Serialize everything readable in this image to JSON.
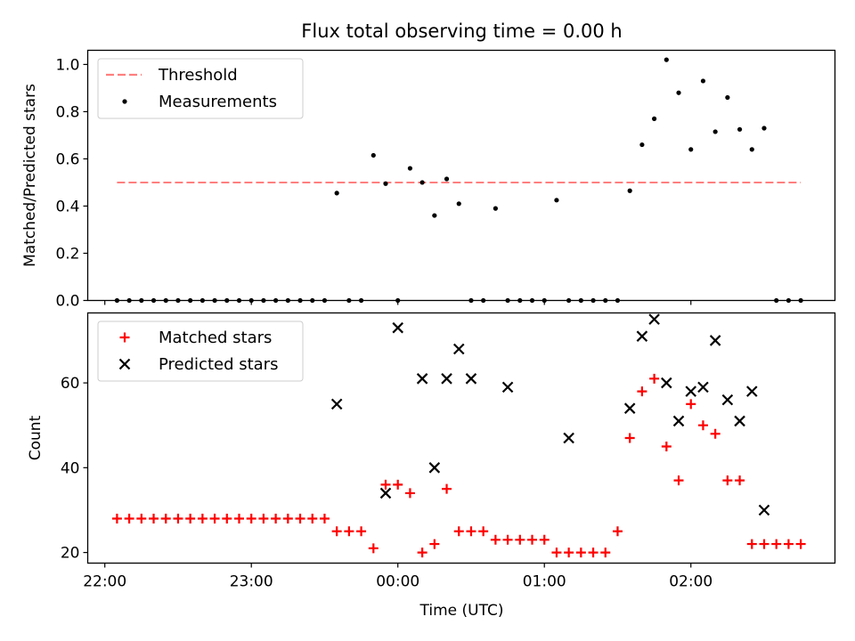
{
  "title": "Flux total observing time = 0.00 h",
  "chart_data": [
    {
      "type": "scatter",
      "ylabel": "Matched/Predicted stars",
      "ylim": [
        0,
        1.06
      ],
      "yticks": [
        0.0,
        0.2,
        0.4,
        0.6,
        0.8,
        1.0
      ],
      "ytick_labels": [
        "0.0",
        "0.2",
        "0.4",
        "0.6",
        "0.8",
        "1.0"
      ],
      "legend": {
        "placement": "top-left",
        "entries": [
          "Threshold",
          "Measurements"
        ]
      },
      "threshold": {
        "name": "Threshold",
        "value": 0.5,
        "x_start": "22:05",
        "x_end": "02:45",
        "color": "#ff7f7f",
        "style": "dashed"
      },
      "series": [
        {
          "name": "Measurements",
          "color": "#000000",
          "marker": "dot",
          "x": [
            "22:05",
            "22:10",
            "22:15",
            "22:20",
            "22:25",
            "22:30",
            "22:35",
            "22:40",
            "22:45",
            "22:50",
            "22:55",
            "23:00",
            "23:05",
            "23:10",
            "23:15",
            "23:20",
            "23:25",
            "23:30",
            "23:35",
            "23:40",
            "23:45",
            "23:50",
            "23:55",
            "00:00",
            "00:05",
            "00:10",
            "00:15",
            "00:20",
            "00:25",
            "00:30",
            "00:35",
            "00:40",
            "00:45",
            "00:50",
            "00:55",
            "01:00",
            "01:05",
            "01:10",
            "01:15",
            "01:20",
            "01:25",
            "01:30",
            "01:35",
            "01:40",
            "01:45",
            "01:50",
            "01:55",
            "02:00",
            "02:05",
            "02:10",
            "02:15",
            "02:20",
            "02:25",
            "02:30",
            "02:35",
            "02:40",
            "02:45"
          ],
          "y": [
            0,
            0,
            0,
            0,
            0,
            0,
            0,
            0,
            0,
            0,
            0,
            0,
            0,
            0,
            0,
            0,
            0,
            0,
            0.455,
            0,
            0,
            0.615,
            0.495,
            0,
            0.56,
            0.5,
            0.36,
            0.515,
            0.41,
            0,
            0,
            0.39,
            0,
            0,
            0,
            0,
            0.425,
            0,
            0,
            0,
            0,
            0,
            0.465,
            0.66,
            0.77,
            1.02,
            0.88,
            0.64,
            0.93,
            0.715,
            0.86,
            0.725,
            0.64,
            0.73,
            0,
            0,
            0
          ]
        }
      ]
    },
    {
      "type": "scatter",
      "xlabel": "Time (UTC)",
      "ylabel": "Count",
      "ylim": [
        17.5,
        76.5
      ],
      "yticks": [
        20,
        40,
        60
      ],
      "ytick_labels": [
        "20",
        "40",
        "60"
      ],
      "xticks": [
        "22:00",
        "23:00",
        "00:00",
        "01:00",
        "02:00"
      ],
      "xlim": [
        "21:53",
        "02:59"
      ],
      "legend": {
        "placement": "top-left",
        "entries": [
          "Matched stars",
          "Predicted stars"
        ]
      },
      "series": [
        {
          "name": "Matched stars",
          "color": "#ff0000",
          "marker": "plus",
          "x": [
            "22:05",
            "22:10",
            "22:15",
            "22:20",
            "22:25",
            "22:30",
            "22:35",
            "22:40",
            "22:45",
            "22:50",
            "22:55",
            "23:00",
            "23:05",
            "23:10",
            "23:15",
            "23:20",
            "23:25",
            "23:30",
            "23:35",
            "23:40",
            "23:45",
            "23:50",
            "23:55",
            "00:00",
            "00:05",
            "00:10",
            "00:15",
            "00:20",
            "00:25",
            "00:30",
            "00:35",
            "00:40",
            "00:45",
            "00:50",
            "00:55",
            "01:00",
            "01:05",
            "01:10",
            "01:15",
            "01:20",
            "01:25",
            "01:30",
            "01:35",
            "01:40",
            "01:45",
            "01:50",
            "01:55",
            "02:00",
            "02:05",
            "02:10",
            "02:15",
            "02:20",
            "02:25",
            "02:30",
            "02:35",
            "02:40",
            "02:45"
          ],
          "y": [
            28,
            28,
            28,
            28,
            28,
            28,
            28,
            28,
            28,
            28,
            28,
            28,
            28,
            28,
            28,
            28,
            28,
            28,
            25,
            25,
            25,
            21,
            36,
            36,
            34,
            20,
            22,
            35,
            25,
            25,
            25,
            23,
            23,
            23,
            23,
            23,
            20,
            20,
            20,
            20,
            20,
            25,
            47,
            58,
            61,
            45,
            37,
            55,
            50,
            48,
            37,
            37,
            22,
            22,
            22,
            22,
            22
          ]
        },
        {
          "name": "Predicted stars",
          "color": "#000000",
          "marker": "x",
          "x": [
            "23:35",
            "23:55",
            "00:00",
            "00:10",
            "00:15",
            "00:20",
            "00:25",
            "00:30",
            "00:45",
            "01:10",
            "01:35",
            "01:40",
            "01:45",
            "01:50",
            "01:55",
            "02:00",
            "02:05",
            "02:10",
            "02:15",
            "02:20",
            "02:25",
            "02:30"
          ],
          "y": [
            55,
            34,
            73,
            61,
            40,
            61,
            68,
            61,
            59,
            47,
            54,
            71,
            75,
            60,
            51,
            58,
            59,
            70,
            56,
            51,
            58,
            30
          ]
        }
      ]
    }
  ]
}
